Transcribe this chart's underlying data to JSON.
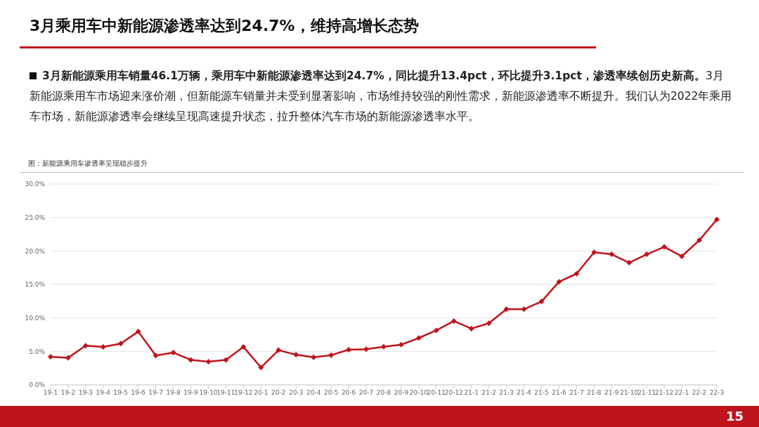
{
  "chart_data": {
    "type": "line",
    "title": "3月乘用车中新能源渗透率达到24.7%，维持高增长态势",
    "subtitle": "3月新能源乘用车销量46.1万辆，乘用车中新能源渗透率达到24.7%，同比提升13.4pct，环比提升3.1pct，渗透率续创历史新高。",
    "annotations": [
      "3月新能源乘用车市场迎来涨价潮，但新能源车销量并未受到显著影响，市场维持较强的刚性需求，新能源渗透率不断提升。我们认为2022年乘用车市场，新能源渗透率会继续呈现高速提升状态，拉升整体汽车市场的新能源渗透率水平。",
      "图：新能源乘用车渗透率呈现稳步提升",
      "15"
    ],
    "categories": [
      "19-1",
      "19-2",
      "19-3",
      "19-4",
      "19-5",
      "19-6",
      "19-7",
      "19-8",
      "19-9",
      "19-10",
      "19-11",
      "19-12",
      "20-1",
      "20-2",
      "20-3",
      "20-4",
      "20-5",
      "20-6",
      "20-7",
      "20-8",
      "20-9",
      "20-10",
      "20-11",
      "20-12",
      "21-1",
      "21-2",
      "21-3",
      "21-4",
      "21-5",
      "21-6",
      "21-7",
      "21-8",
      "21-9",
      "21-10",
      "21-11",
      "21-12",
      "22-1",
      "22-2",
      "22-3"
    ],
    "series": [
      {
        "color": "#c0141c",
        "values": [
          4.2,
          4.05,
          5.85,
          5.67,
          6.16,
          7.96,
          4.37,
          4.82,
          3.73,
          3.45,
          3.73,
          5.67,
          2.6,
          5.18,
          4.5,
          4.12,
          4.44,
          5.25,
          5.32,
          5.7,
          6.0,
          7.0,
          8.14,
          9.53,
          8.4,
          9.2,
          11.3,
          11.3,
          12.45,
          15.4,
          16.6,
          19.8,
          19.5,
          18.25,
          19.5,
          20.6,
          19.2,
          21.6,
          24.7
        ]
      }
    ],
    "ylim": [
      0,
      30
    ],
    "yticks": [
      {
        "value": 0,
        "label": "0.0%"
      },
      {
        "value": 5,
        "label": "5.0%"
      },
      {
        "value": 10,
        "label": "10.0%"
      },
      {
        "value": 15,
        "label": "15.0%"
      },
      {
        "value": 20,
        "label": "20.0%"
      },
      {
        "value": 25,
        "label": "25.0%"
      },
      {
        "value": 30,
        "label": "30.0%"
      }
    ],
    "grid": "y",
    "marker": "diamond",
    "line_style": "solid"
  }
}
